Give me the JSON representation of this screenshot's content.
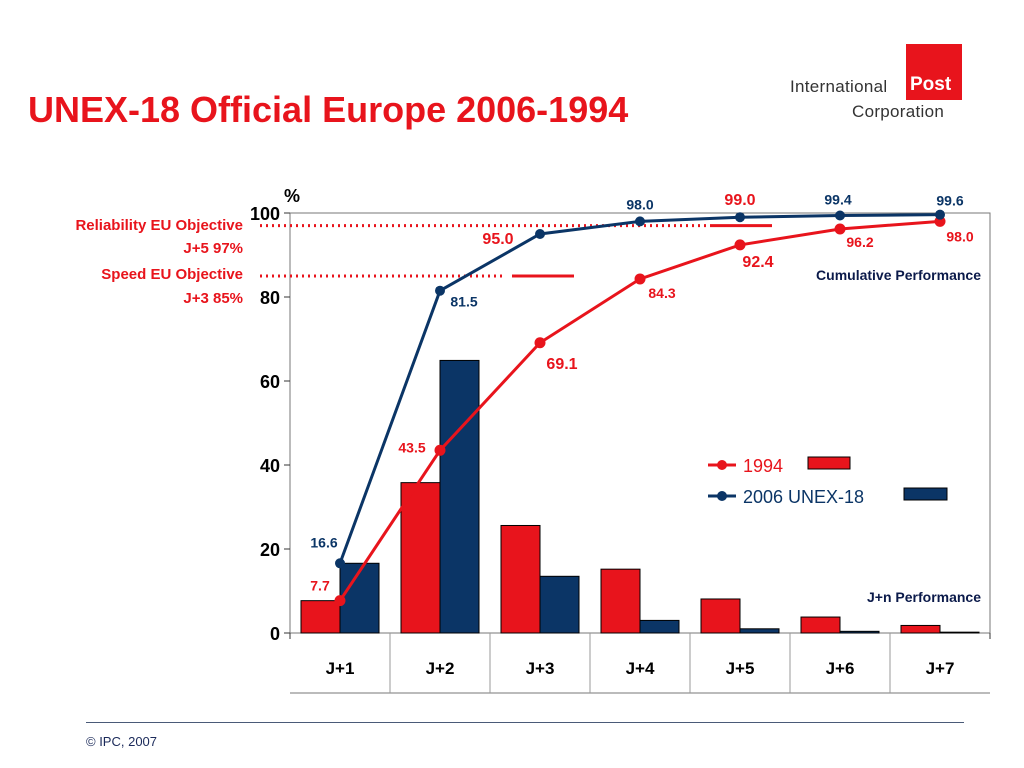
{
  "title": "UNEX-18 Official Europe 2006-1994",
  "logo": {
    "line1": "International",
    "box": "Post",
    "line2": "Corporation"
  },
  "footer": "© IPC, 2007",
  "colors": {
    "red": "#e8141c",
    "navy": "#0b3566",
    "title": "#e8141c"
  },
  "objectives": [
    {
      "name": "Reliability EU Objective",
      "target": "J+5 97%",
      "value": 97
    },
    {
      "name": "Speed EU Objective",
      "target": "J+3 85%",
      "value": 85
    }
  ],
  "chart_data": {
    "type": "bar",
    "categories": [
      "J+1",
      "J+2",
      "J+3",
      "J+4",
      "J+5",
      "J+6",
      "J+7"
    ],
    "ylabel": "%",
    "ylim": [
      0,
      100
    ],
    "yticks": [
      0,
      20,
      40,
      60,
      80,
      100
    ],
    "grid": false,
    "series": [
      {
        "name": "1994",
        "kind": "bar",
        "color": "#e8141c",
        "values": [
          7.7,
          35.8,
          25.6,
          15.2,
          8.1,
          3.8,
          1.8
        ]
      },
      {
        "name": "2006 UNEX-18",
        "kind": "bar",
        "color": "#0b3566",
        "values": [
          16.6,
          64.9,
          13.5,
          3.0,
          1.0,
          0.4,
          0.2
        ]
      },
      {
        "name": "1994",
        "kind": "line",
        "color": "#e8141c",
        "values": [
          7.7,
          43.5,
          69.1,
          84.3,
          92.4,
          96.2,
          98.0
        ],
        "labels": [
          "7.7",
          "43.5",
          "69.1",
          "84.3",
          "92.4",
          "96.2",
          "98.0"
        ]
      },
      {
        "name": "2006 UNEX-18",
        "kind": "line",
        "color": "#0b3566",
        "values": [
          16.6,
          81.5,
          95.0,
          98.0,
          99.0,
          99.4,
          99.6
        ],
        "labels": [
          "16.6",
          "81.5",
          "95.0",
          "98.0",
          "99.0",
          "99.4",
          "99.6"
        ]
      }
    ],
    "legend": {
      "placement": "right-middle",
      "entries": [
        "1994",
        "2006 UNEX-18"
      ]
    },
    "annotations": [
      "Cumulative Performance",
      "J+n Performance"
    ]
  }
}
